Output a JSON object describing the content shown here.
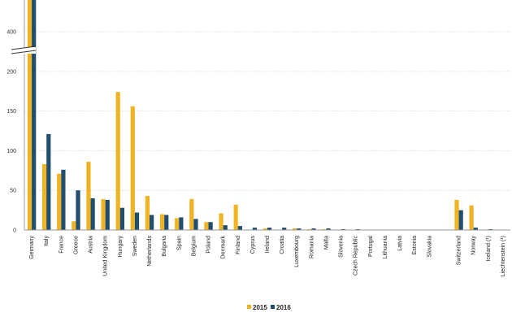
{
  "chart_data": {
    "type": "bar",
    "title": "",
    "xlabel": "",
    "ylabel": "",
    "grid": true,
    "legend_position": "bottom-center",
    "y_axis_break": true,
    "y_ticks": [
      "0",
      "50",
      "100",
      "150",
      "200",
      "400"
    ],
    "categories": [
      "Germany",
      "Italy",
      "France",
      "Greece",
      "Austria",
      "United Kingdom",
      "Hungary",
      "Sweden",
      "Netherlands",
      "Bulgaria",
      "Spain",
      "Belgium",
      "Poland",
      "Denmark",
      "Finland",
      "Cyprus",
      "Ireland",
      "Croatia",
      "Luxembourg",
      "Romania",
      "Malta",
      "Slovenia",
      "Czech Republic",
      "Portugal",
      "Lithuania",
      "Latvia",
      "Estonia",
      "Slovakia",
      "",
      "Switzerland",
      "Norway",
      "Iceland (¹)",
      "Liechtenstein (¹)"
    ],
    "series": [
      {
        "name": "2015",
        "color": "#f0b323",
        "values": [
          442,
          83,
          71,
          11,
          86,
          39,
          174,
          156,
          43,
          20,
          15,
          39,
          10,
          21,
          32,
          0.5,
          2,
          0.5,
          2,
          1,
          1,
          0.5,
          0.5,
          0.5,
          0.5,
          0.5,
          0.5,
          0.5,
          null,
          38,
          31,
          0.5,
          0
        ]
      },
      {
        "name": "2016",
        "color": "#1f4e6e",
        "values": [
          722,
          121,
          76,
          50,
          40,
          38,
          28,
          22,
          19,
          19,
          16,
          14,
          10,
          6,
          5,
          3,
          3,
          3,
          2,
          2,
          2,
          1,
          1,
          0.5,
          0.5,
          0.5,
          0.5,
          0.5,
          null,
          25,
          3,
          1,
          0
        ]
      }
    ]
  }
}
